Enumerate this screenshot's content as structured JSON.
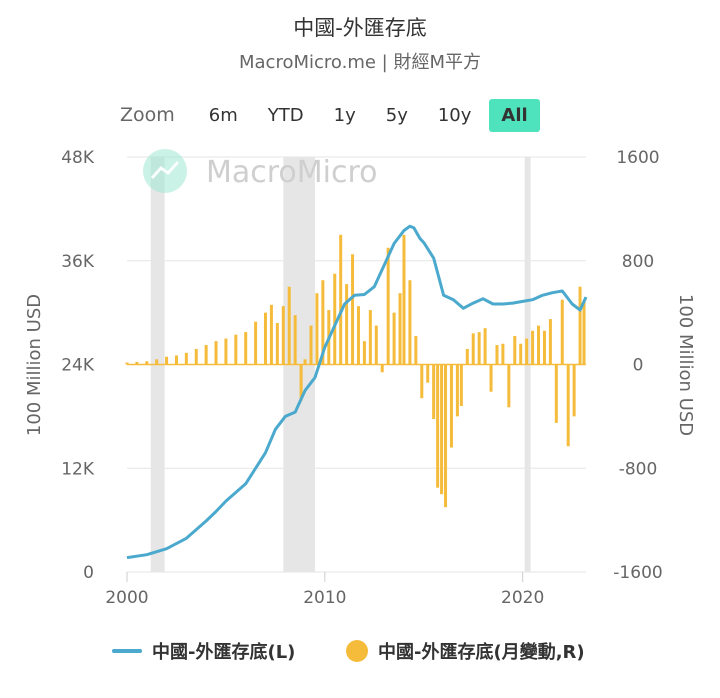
{
  "title": "中國-外匯存底",
  "subtitle": "MacroMicro.me | 財經M平方",
  "rangeSelector": {
    "zoom_label": "Zoom",
    "buttons": [
      "6m",
      "YTD",
      "1y",
      "5y",
      "10y",
      "All"
    ],
    "active": "All"
  },
  "watermark": "MacroMicro",
  "colors": {
    "reserves": "#4aa9cd",
    "monthly_change": "#f5bc3c",
    "recession": "#e6e6e6",
    "active_button": "#4fe3bd"
  },
  "legend": {
    "reserves_label": "中國-外匯存底(L)",
    "change_label": "中國-外匯存底(月變動,R)"
  },
  "chart_data": {
    "type": "line+bar",
    "x_range": [
      2000,
      2023.2
    ],
    "x_ticks": [
      "2000",
      "2010",
      "2020"
    ],
    "left_axis": {
      "label": "100 Million USD",
      "range": [
        0,
        48000
      ],
      "ticks": [
        "0",
        "12K",
        "24K",
        "36K",
        "48K"
      ]
    },
    "right_axis": {
      "label": "100 Million USD",
      "range": [
        -1600,
        1600
      ],
      "ticks": [
        "-1600",
        "-800",
        "0",
        "800",
        "1600"
      ]
    },
    "shaded_periods": [
      [
        2001.2,
        2001.9
      ],
      [
        2007.9,
        2009.5
      ],
      [
        2020.1,
        2020.4
      ]
    ],
    "series": [
      {
        "name": "中國-外匯存底(L)",
        "axis": "left",
        "x": [
          2000.0,
          2001.0,
          2002.0,
          2003.0,
          2004.0,
          2004.5,
          2005.0,
          2006.0,
          2007.0,
          2007.5,
          2008.0,
          2008.5,
          2009.0,
          2009.5,
          2010.0,
          2010.5,
          2011.0,
          2011.5,
          2012.0,
          2012.5,
          2013.0,
          2013.5,
          2014.0,
          2014.3,
          2014.5,
          2014.8,
          2015.0,
          2015.5,
          2016.0,
          2016.5,
          2017.0,
          2017.5,
          2018.0,
          2018.5,
          2019.0,
          2019.5,
          2020.0,
          2020.5,
          2021.0,
          2021.5,
          2022.0,
          2022.5,
          2022.9,
          2023.2
        ],
        "values": [
          1650,
          2000,
          2700,
          3900,
          5900,
          7000,
          8200,
          10200,
          13800,
          16500,
          18000,
          18500,
          21000,
          22500,
          26000,
          28500,
          31000,
          32000,
          32100,
          33000,
          35500,
          38000,
          39500,
          40000,
          39800,
          38600,
          38100,
          36300,
          32000,
          31500,
          30500,
          31100,
          31600,
          31000,
          31000,
          31100,
          31300,
          31500,
          32000,
          32300,
          32500,
          31000,
          30300,
          31800
        ]
      },
      {
        "name": "中國-外匯存底(月變動,R)",
        "axis": "right",
        "x": [
          2000.0,
          2000.5,
          2001.0,
          2001.5,
          2002.0,
          2002.5,
          2003.0,
          2003.5,
          2004.0,
          2004.5,
          2005.0,
          2005.5,
          2006.0,
          2006.5,
          2007.0,
          2007.3,
          2007.6,
          2007.9,
          2008.2,
          2008.5,
          2008.8,
          2009.0,
          2009.3,
          2009.6,
          2009.9,
          2010.2,
          2010.5,
          2010.8,
          2011.1,
          2011.4,
          2011.7,
          2012.0,
          2012.3,
          2012.6,
          2012.9,
          2013.2,
          2013.5,
          2013.8,
          2014.0,
          2014.3,
          2014.6,
          2014.9,
          2015.2,
          2015.5,
          2015.7,
          2015.9,
          2016.1,
          2016.4,
          2016.7,
          2016.9,
          2017.2,
          2017.5,
          2017.8,
          2018.1,
          2018.4,
          2018.7,
          2019.0,
          2019.3,
          2019.6,
          2019.9,
          2020.2,
          2020.5,
          2020.8,
          2021.1,
          2021.4,
          2021.7,
          2022.0,
          2022.3,
          2022.6,
          2022.9,
          2023.1
        ],
        "values": [
          15,
          20,
          25,
          40,
          60,
          70,
          90,
          120,
          150,
          180,
          200,
          230,
          250,
          330,
          400,
          460,
          320,
          450,
          600,
          380,
          -280,
          40,
          300,
          550,
          650,
          420,
          700,
          1000,
          620,
          850,
          450,
          180,
          420,
          300,
          -60,
          900,
          400,
          550,
          1000,
          650,
          220,
          -260,
          -140,
          -420,
          -950,
          -1000,
          -1100,
          -640,
          -400,
          -320,
          120,
          240,
          250,
          280,
          -210,
          150,
          160,
          -330,
          220,
          160,
          200,
          260,
          300,
          260,
          350,
          -450,
          500,
          -630,
          -400,
          600,
          480
        ]
      }
    ]
  }
}
